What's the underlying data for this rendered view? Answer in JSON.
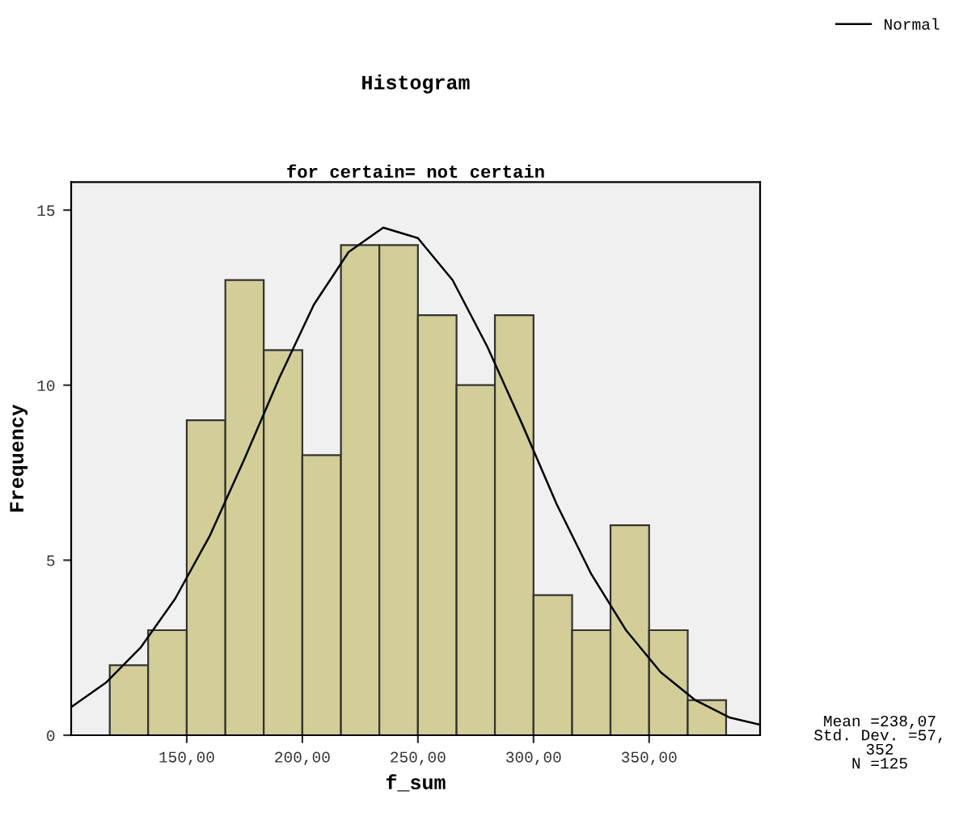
{
  "chart_data": {
    "type": "histogram",
    "title": "Histogram",
    "subtitle": "for certain= not certain",
    "xlabel": "f_sum",
    "ylabel": "Frequency",
    "bins": [
      116.7,
      133.3,
      150,
      166.7,
      183.3,
      200,
      216.7,
      233.3,
      250,
      266.7,
      283.3,
      300,
      316.7,
      333.3,
      350,
      366.7,
      383.3
    ],
    "values": [
      2,
      3,
      9,
      13,
      11,
      8,
      14,
      14,
      12,
      10,
      12,
      4,
      3,
      6,
      3,
      1
    ],
    "color": "#d3ce97",
    "series": [
      {
        "name": "Normal",
        "type": "line",
        "color": "#000000",
        "x": [
          100,
          115,
          130,
          145,
          160,
          175,
          190,
          205,
          220,
          235,
          250,
          265,
          280,
          295,
          310,
          325,
          340,
          355,
          370,
          385,
          398
        ],
        "values": [
          0.8,
          1.5,
          2.5,
          3.9,
          5.7,
          7.9,
          10.2,
          12.3,
          13.8,
          14.5,
          14.2,
          13.0,
          11.1,
          8.9,
          6.6,
          4.6,
          3.0,
          1.8,
          1.0,
          0.5,
          0.3
        ]
      }
    ],
    "xlim": [
      100,
      398
    ],
    "ylim": [
      0,
      15.8
    ],
    "xticks": [
      {
        "value": 150,
        "label": "150,00"
      },
      {
        "value": 200,
        "label": "200,00"
      },
      {
        "value": 250,
        "label": "250,00"
      },
      {
        "value": 300,
        "label": "300,00"
      },
      {
        "value": 350,
        "label": "350,00"
      }
    ],
    "yticks": [
      0,
      5,
      10,
      15
    ],
    "annotations": [
      "Mean =238,07\nStd. Dev. =57,\n352\nN =125"
    ],
    "legend": "top right",
    "grid": false,
    "marker": "none",
    "line_style": "solid"
  }
}
